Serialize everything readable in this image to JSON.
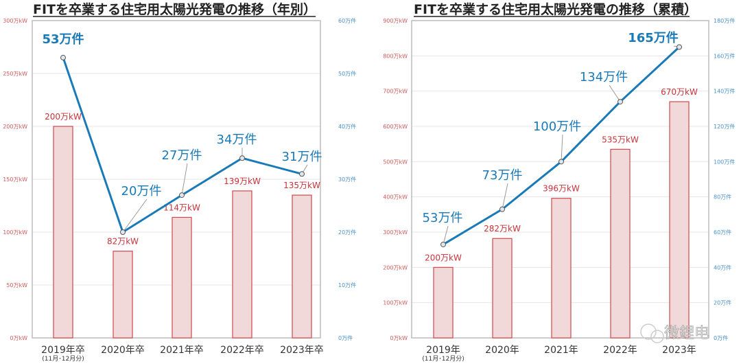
{
  "chart_data": [
    {
      "type": "bar+line",
      "title": "FITを卒業する住宅用太陽光発電の推移（年別）",
      "categories": [
        "2019年卒",
        "2020年卒",
        "2021年卒",
        "2022年卒",
        "2023年卒"
      ],
      "category_note": "(11月･12月分)",
      "bar_series": {
        "name": "万kW",
        "values": [
          200,
          82,
          114,
          139,
          135
        ],
        "labels": [
          "200万kW",
          "82万kW",
          "114万kW",
          "139万kW",
          "135万kW"
        ]
      },
      "line_series": {
        "name": "万件",
        "values": [
          53,
          20,
          27,
          34,
          31
        ],
        "labels": [
          "53万件",
          "20万件",
          "27万件",
          "34万件",
          "31万件"
        ]
      },
      "ylim_left": [
        0,
        300
      ],
      "ylim_right": [
        0,
        60
      ],
      "yticks_left": [
        "0万kW",
        "50万kW",
        "100万kW",
        "150万kW",
        "200万kW",
        "250万kW",
        "300万kW"
      ],
      "yticks_right": [
        "0万件",
        "10万件",
        "20万件",
        "30万件",
        "40万件",
        "50万件",
        "60万件"
      ],
      "grid": true
    },
    {
      "type": "bar+line",
      "title": "FITを卒業する住宅用太陽光発電の推移（累積）",
      "categories": [
        "2019年",
        "2020年",
        "2021年",
        "2022年",
        "2023年"
      ],
      "category_note": "(11月･12月分)",
      "bar_series": {
        "name": "万kW",
        "values": [
          200,
          282,
          396,
          535,
          670
        ],
        "labels": [
          "200万kW",
          "282万kW",
          "396万kW",
          "535万kW",
          "670万kW"
        ]
      },
      "line_series": {
        "name": "万件",
        "values": [
          53,
          73,
          100,
          134,
          165
        ],
        "labels": [
          "53万件",
          "73万件",
          "100万件",
          "134万件",
          "165万件"
        ]
      },
      "ylim_left": [
        0,
        900
      ],
      "ylim_right": [
        0,
        180
      ],
      "yticks_left": [
        "0万kW",
        "100万kW",
        "200万kW",
        "300万kW",
        "400万kW",
        "500万kW",
        "600万kW",
        "700万kW",
        "800万kW",
        "900万kW"
      ],
      "yticks_right": [
        "0万件",
        "20万件",
        "40万件",
        "60万件",
        "80万件",
        "100万件",
        "120万件",
        "140万件",
        "160万件",
        "180万件"
      ],
      "grid": true
    }
  ],
  "watermark": "微鋰电",
  "colors": {
    "bar_fill": "#f2d9d9",
    "bar_stroke": "#d0474d",
    "line": "#1a7ab8",
    "left_axis": "#d05a5a",
    "right_axis": "#4a90c8"
  }
}
